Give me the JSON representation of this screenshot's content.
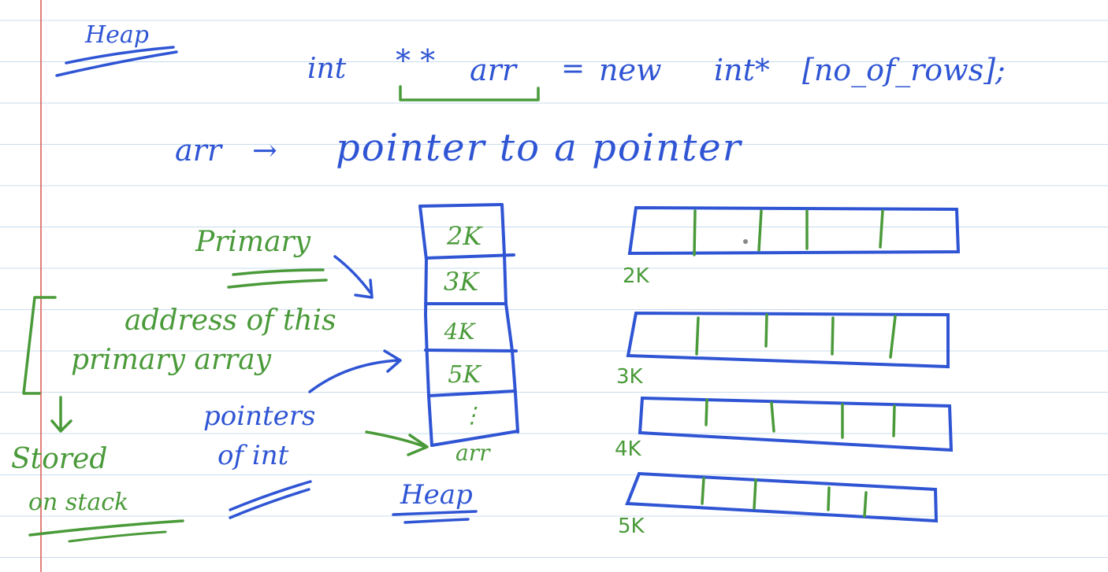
{
  "heading_top": "Heap",
  "code_line": {
    "type": "int",
    "stars": "* *",
    "var": "arr",
    "eq": "=",
    "kw_new": "new",
    "type2": "int*",
    "index": "[no_of_rows];"
  },
  "description": {
    "var": "arr",
    "arrow": "→",
    "text": "pointer to a pointer"
  },
  "labels": {
    "primary": "Primary",
    "address_line1": "address of this",
    "address_line2": "primary array",
    "stored_line1": "Stored",
    "stored_line2": "on stack",
    "pointers_line1": "pointers",
    "pointers_line2": "of int",
    "arr_label": "arr",
    "heap_bottom": "Heap"
  },
  "primary_array": {
    "cells": [
      "2K",
      "3K",
      "4K",
      "5K",
      "⋮"
    ]
  },
  "rows": [
    {
      "label": "2K"
    },
    {
      "label": "3K"
    },
    {
      "label": "4K"
    },
    {
      "label": "5K"
    }
  ],
  "colors": {
    "blue_ink": "#2f55d4",
    "green_ink": "#4a9a3a",
    "rule_line": "#c9dcec",
    "margin_line": "#d9534f"
  }
}
